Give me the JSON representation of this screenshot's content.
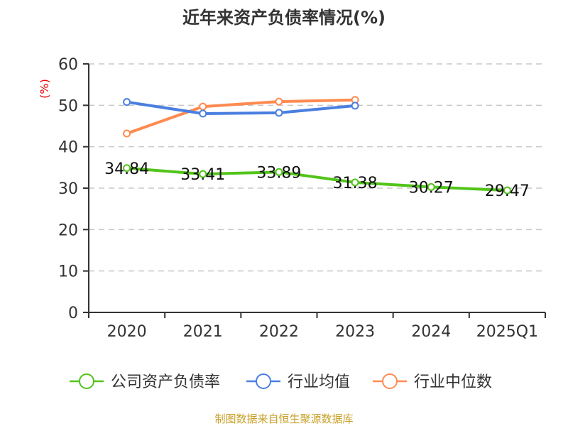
{
  "chart_data": {
    "type": "line",
    "title": "近年来资产负债率情况(%)",
    "ylabel": "(%)",
    "xlabel": "",
    "categories": [
      "2020",
      "2021",
      "2022",
      "2023",
      "2024",
      "2025Q1"
    ],
    "yticks": [
      "0",
      "10",
      "20",
      "30",
      "40",
      "50",
      "60"
    ],
    "ylim": [
      0,
      60
    ],
    "grid": true,
    "legend_position": "bottom",
    "series": [
      {
        "name": "公司资产负债率",
        "color": "#52c41a",
        "values": [
          34.84,
          33.41,
          33.89,
          31.38,
          30.27,
          29.47
        ],
        "labels": [
          "34.84",
          "33.41",
          "33.89",
          "31.38",
          "30.27",
          "29.47"
        ]
      },
      {
        "name": "行业均值",
        "color": "#4a7fe0",
        "values": [
          50.8,
          48.0,
          48.2,
          49.9,
          null,
          null
        ]
      },
      {
        "name": "行业中位数",
        "color": "#ff8a50",
        "values": [
          43.2,
          49.7,
          50.9,
          51.3,
          null,
          null
        ]
      }
    ],
    "source": "制图数据来自恒生聚源数据库"
  }
}
